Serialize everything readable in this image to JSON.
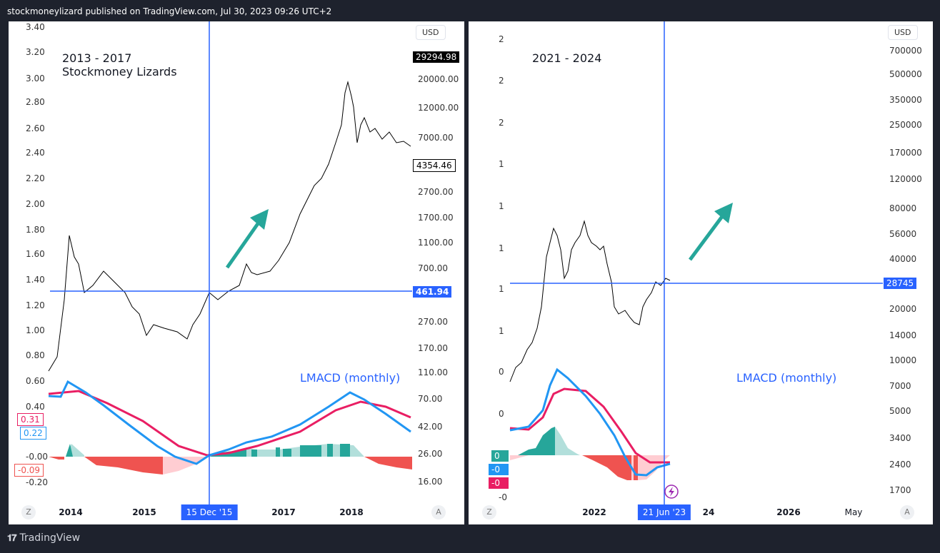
{
  "header": "stockmoneylizard published on TradingView.com, Jul 30, 2023 09:26 UTC+2",
  "footer": {
    "brand": "TradingView",
    "logo": "TV"
  },
  "left": {
    "title1": "2013 - 2017",
    "title2": "Stockmoney Lizards",
    "currency": "USD",
    "indicator": "LMACD (monthly)",
    "left_axis": [
      "3.40",
      "3.20",
      "3.00",
      "2.80",
      "2.60",
      "2.40",
      "2.20",
      "2.00",
      "1.80",
      "1.60",
      "1.40",
      "1.20",
      "1.00",
      "0.80",
      "0.60",
      "0.40",
      "-0.00",
      "-0.20"
    ],
    "badges": {
      "signal": "0.31",
      "macd": "0.22",
      "hist": "-0.09"
    },
    "price_axis": [
      "20000.00",
      "12000.00",
      "7000.00",
      "2700.00",
      "1700.00",
      "1100.00",
      "700.00",
      "270.00",
      "170.00",
      "110.00",
      "70.00",
      "42.00",
      "26.00",
      "16.00"
    ],
    "last_price": "29294.98",
    "marker_price": "4354.46",
    "crosshair_price": "461.94",
    "dates": [
      "2014",
      "2015",
      "2017",
      "2018"
    ],
    "crosshair_date": "15 Dec '15",
    "z": "Z",
    "a": "A"
  },
  "right": {
    "title": "2021 - 2024",
    "currency": "USD",
    "indicator": "LMACD (monthly)",
    "left_axis": [
      "2",
      "2",
      "2",
      "1",
      "1",
      "1",
      "1",
      "1",
      "0",
      "0",
      "-0"
    ],
    "badges": {
      "hist": "0",
      "macd": "-0",
      "signal": "-0"
    },
    "price_axis": [
      "700000",
      "500000",
      "350000",
      "250000",
      "170000",
      "120000",
      "80000",
      "56000",
      "40000",
      "20000",
      "14000",
      "10000",
      "7000",
      "5000",
      "3400",
      "2400",
      "1700"
    ],
    "crosshair_price": "28745",
    "dates": [
      "2022",
      "24",
      "2026",
      "May"
    ],
    "crosshair_date": "21 Jun '23",
    "z": "Z",
    "a": "A"
  },
  "colors": {
    "bg": "#1e222d",
    "crosshair": "#2962ff",
    "macd": "#2196f3",
    "signal": "#e91e63",
    "hist_up": "#26a69a",
    "hist_up_light": "#b2dfdb",
    "hist_dn": "#ef5350",
    "hist_dn_light": "#ffcdd2",
    "arrow": "#26a69a"
  }
}
